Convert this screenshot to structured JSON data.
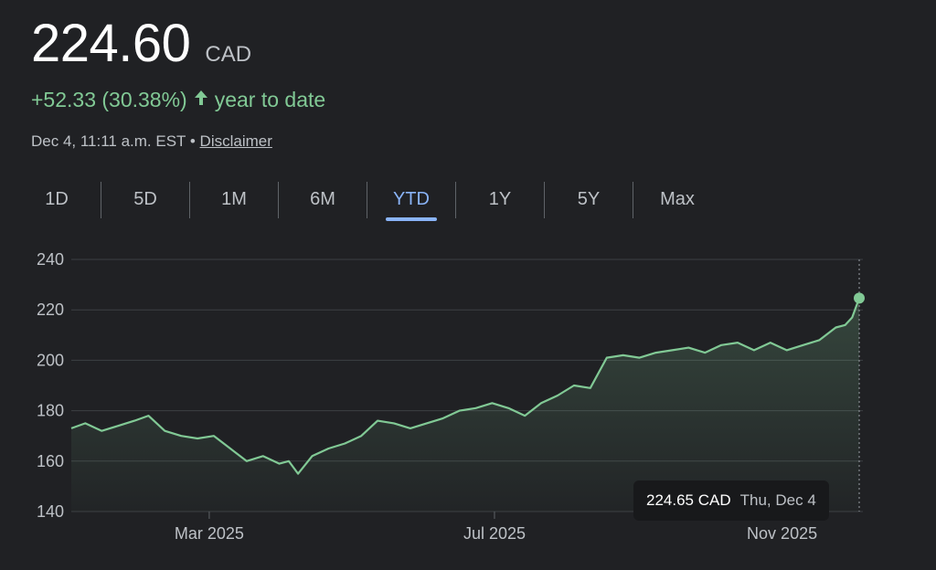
{
  "quote": {
    "price": "224.60",
    "currency": "CAD",
    "change_text": "+52.33 (30.38%)",
    "change_period": "year to date",
    "timestamp": "Dec 4, 11:11 a.m. EST •",
    "disclaimer": "Disclaimer",
    "up_color": "#81c995",
    "icon": "arrow-up-icon"
  },
  "tabs": [
    {
      "label": "1D",
      "active": false
    },
    {
      "label": "5D",
      "active": false
    },
    {
      "label": "1M",
      "active": false
    },
    {
      "label": "6M",
      "active": false
    },
    {
      "label": "YTD",
      "active": true
    },
    {
      "label": "1Y",
      "active": false
    },
    {
      "label": "5Y",
      "active": false
    },
    {
      "label": "Max",
      "active": false
    }
  ],
  "tooltip": {
    "price": "224.65 CAD",
    "date": "Thu, Dec 4"
  },
  "chart_data": {
    "type": "area",
    "title": "",
    "xlabel": "",
    "ylabel": "",
    "ylim": [
      140,
      240
    ],
    "xlim": [
      "2025-01-01",
      "2025-12-04"
    ],
    "y_ticks": [
      240,
      220,
      200,
      180,
      160,
      140
    ],
    "x_ticks": [
      {
        "label": "Mar 2025",
        "date": "2025-03-01"
      },
      {
        "label": "Jul 2025",
        "date": "2025-07-01"
      },
      {
        "label": "Nov 2025",
        "date": "2025-11-01"
      }
    ],
    "grid": true,
    "line_color": "#81c995",
    "x": [
      "2025-01-01",
      "2025-01-07",
      "2025-01-14",
      "2025-01-21",
      "2025-01-28",
      "2025-02-03",
      "2025-02-10",
      "2025-02-17",
      "2025-02-24",
      "2025-03-03",
      "2025-03-10",
      "2025-03-17",
      "2025-03-24",
      "2025-03-31",
      "2025-04-04",
      "2025-04-08",
      "2025-04-14",
      "2025-04-21",
      "2025-04-28",
      "2025-05-05",
      "2025-05-12",
      "2025-05-19",
      "2025-05-26",
      "2025-06-02",
      "2025-06-09",
      "2025-06-16",
      "2025-06-23",
      "2025-06-30",
      "2025-07-07",
      "2025-07-14",
      "2025-07-21",
      "2025-07-28",
      "2025-08-04",
      "2025-08-11",
      "2025-08-18",
      "2025-08-25",
      "2025-09-01",
      "2025-09-08",
      "2025-09-15",
      "2025-09-22",
      "2025-09-29",
      "2025-10-06",
      "2025-10-13",
      "2025-10-20",
      "2025-10-27",
      "2025-11-03",
      "2025-11-10",
      "2025-11-17",
      "2025-11-24",
      "2025-11-28",
      "2025-12-01",
      "2025-12-04"
    ],
    "y": [
      173,
      175,
      172,
      174,
      176,
      178,
      172,
      170,
      169,
      170,
      165,
      160,
      162,
      159,
      160,
      155,
      162,
      165,
      167,
      170,
      176,
      175,
      173,
      175,
      177,
      180,
      181,
      183,
      181,
      178,
      183,
      186,
      190,
      189,
      201,
      202,
      201,
      203,
      204,
      205,
      203,
      206,
      207,
      204,
      207,
      204,
      206,
      208,
      213,
      214,
      217,
      224.65
    ]
  }
}
